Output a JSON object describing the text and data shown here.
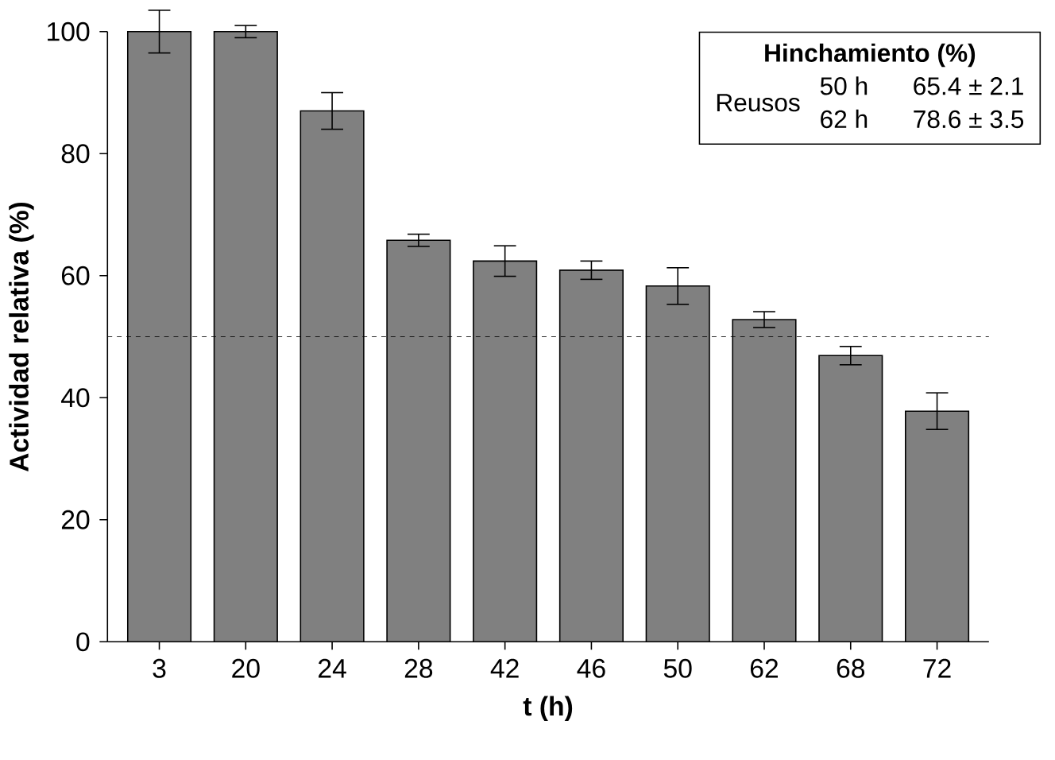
{
  "chart_data": {
    "type": "bar",
    "xlabel": "t (h)",
    "ylabel": "Actividad relativa (%)",
    "categories": [
      "3",
      "20",
      "24",
      "28",
      "42",
      "46",
      "50",
      "62",
      "68",
      "72"
    ],
    "values": [
      100,
      100,
      87,
      65.8,
      62.4,
      60.9,
      58.3,
      52.8,
      46.9,
      37.8
    ],
    "errors": [
      3.5,
      1,
      3,
      1,
      2.5,
      1.5,
      3,
      1.3,
      1.5,
      3
    ],
    "color": "#808080",
    "ylim": [
      0,
      100
    ],
    "yticks": [
      0,
      20,
      40,
      60,
      80,
      100
    ],
    "ref_lines": [
      {
        "axis": "y",
        "value": 50,
        "color": "#000000",
        "line_style": "dashed"
      }
    ],
    "annotations": [
      "Hinchamiento (%)",
      "Reusos",
      "50 h",
      "65.4 ± 2.1",
      "62 h",
      "78.6 ± 3.5"
    ],
    "grid": false,
    "legend": false
  }
}
